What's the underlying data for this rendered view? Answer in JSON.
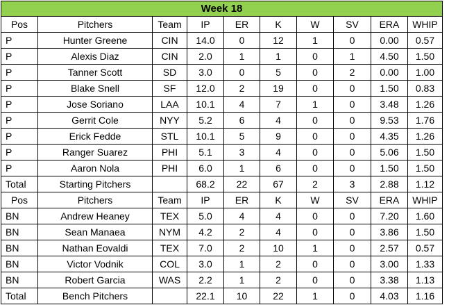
{
  "title_fill": "#92d050",
  "title": "Week 18",
  "columns": [
    "Pos",
    "Pitchers",
    "Team",
    "IP",
    "ER",
    "K",
    "W",
    "SV",
    "ERA",
    "WHIP"
  ],
  "starters": [
    {
      "pos": "P",
      "name": "Hunter Greene",
      "team": "CIN",
      "ip": "14.0",
      "er": "0",
      "k": "12",
      "w": "1",
      "sv": "0",
      "era": "0.00",
      "whip": "0.57"
    },
    {
      "pos": "P",
      "name": "Alexis Diaz",
      "team": "CIN",
      "ip": "2.0",
      "er": "1",
      "k": "1",
      "w": "0",
      "sv": "1",
      "era": "4.50",
      "whip": "1.50"
    },
    {
      "pos": "P",
      "name": "Tanner Scott",
      "team": "SD",
      "ip": "3.0",
      "er": "0",
      "k": "5",
      "w": "0",
      "sv": "2",
      "era": "0.00",
      "whip": "1.00"
    },
    {
      "pos": "P",
      "name": "Blake Snell",
      "team": "SF",
      "ip": "12.0",
      "er": "2",
      "k": "19",
      "w": "0",
      "sv": "0",
      "era": "1.50",
      "whip": "0.83"
    },
    {
      "pos": "P",
      "name": "Jose Soriano",
      "team": "LAA",
      "ip": "10.1",
      "er": "4",
      "k": "7",
      "w": "1",
      "sv": "0",
      "era": "3.48",
      "whip": "1.26"
    },
    {
      "pos": "P",
      "name": "Gerrit Cole",
      "team": "NYY",
      "ip": "5.2",
      "er": "6",
      "k": "4",
      "w": "0",
      "sv": "0",
      "era": "9.53",
      "whip": "1.76"
    },
    {
      "pos": "P",
      "name": "Erick Fedde",
      "team": "STL",
      "ip": "10.1",
      "er": "5",
      "k": "9",
      "w": "0",
      "sv": "0",
      "era": "4.35",
      "whip": "1.26"
    },
    {
      "pos": "P",
      "name": "Ranger Suarez",
      "team": "PHI",
      "ip": "5.1",
      "er": "3",
      "k": "4",
      "w": "0",
      "sv": "0",
      "era": "5.06",
      "whip": "1.50"
    },
    {
      "pos": "P",
      "name": "Aaron Nola",
      "team": "PHI",
      "ip": "6.0",
      "er": "1",
      "k": "6",
      "w": "0",
      "sv": "0",
      "era": "1.50",
      "whip": "1.50"
    }
  ],
  "starters_total": {
    "pos": "Total",
    "name": "Starting Pitchers",
    "team": "",
    "ip": "68.2",
    "er": "22",
    "k": "67",
    "w": "2",
    "sv": "3",
    "era": "2.88",
    "whip": "1.12"
  },
  "bench": [
    {
      "pos": "BN",
      "name": "Andrew Heaney",
      "team": "TEX",
      "ip": "5.0",
      "er": "4",
      "k": "4",
      "w": "0",
      "sv": "0",
      "era": "7.20",
      "whip": "1.60"
    },
    {
      "pos": "BN",
      "name": "Sean Manaea",
      "team": "NYM",
      "ip": "4.2",
      "er": "2",
      "k": "4",
      "w": "0",
      "sv": "0",
      "era": "3.86",
      "whip": "1.50"
    },
    {
      "pos": "BN",
      "name": "Nathan Eovaldi",
      "team": "TEX",
      "ip": "7.0",
      "er": "2",
      "k": "10",
      "w": "1",
      "sv": "0",
      "era": "2.57",
      "whip": "0.57"
    },
    {
      "pos": "BN",
      "name": "Victor Vodnik",
      "team": "COL",
      "ip": "3.0",
      "er": "1",
      "k": "2",
      "w": "0",
      "sv": "0",
      "era": "3.00",
      "whip": "1.33"
    },
    {
      "pos": "BN",
      "name": "Robert Garcia",
      "team": "WAS",
      "ip": "2.2",
      "er": "1",
      "k": "2",
      "w": "0",
      "sv": "0",
      "era": "3.38",
      "whip": "1.13"
    }
  ],
  "bench_total": {
    "pos": "Total",
    "name": "Bench Pitchers",
    "team": "",
    "ip": "22.1",
    "er": "10",
    "k": "22",
    "w": "1",
    "sv": "0",
    "era": "4.03",
    "whip": "1.16"
  }
}
